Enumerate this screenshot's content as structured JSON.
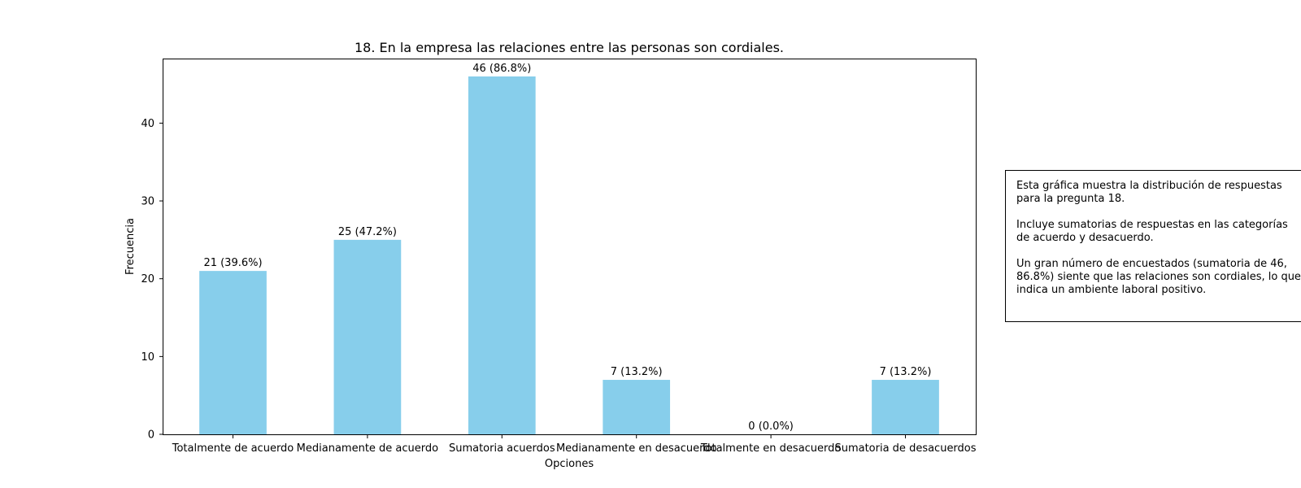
{
  "chart_data": {
    "type": "bar",
    "title": "18. En la empresa las relaciones entre las personas son cordiales.",
    "xlabel": "Opciones",
    "ylabel": "Frecuencia",
    "categories": [
      "Totalmente de acuerdo",
      "Medianamente de acuerdo",
      "Sumatoria acuerdos",
      "Medianamente en desacuerdo",
      "Totalmente en desacuerdo",
      "Sumatoria de desacuerdos"
    ],
    "values": [
      21,
      25,
      46,
      7,
      0,
      7
    ],
    "data_labels": [
      "21 (39.6%)",
      "25 (47.2%)",
      "46 (86.8%)",
      "7 (13.2%)",
      "0 (0.0%)",
      "7 (13.2%)"
    ],
    "yticks": [
      0,
      10,
      20,
      30,
      40
    ],
    "ylim": [
      0,
      48.3
    ],
    "bar_color": "#87CEEB",
    "grid": false,
    "legend": "none"
  },
  "note": {
    "paragraphs": [
      "Esta gráfica muestra la distribución de respuestas para la pregunta 18.",
      "Incluye sumatorias de respuestas en las categorías de acuerdo y desacuerdo.",
      "Un gran número de encuestados (sumatoria de 46, 86.8%) siente que las relaciones son cordiales, lo que indica un ambiente laboral positivo."
    ]
  }
}
